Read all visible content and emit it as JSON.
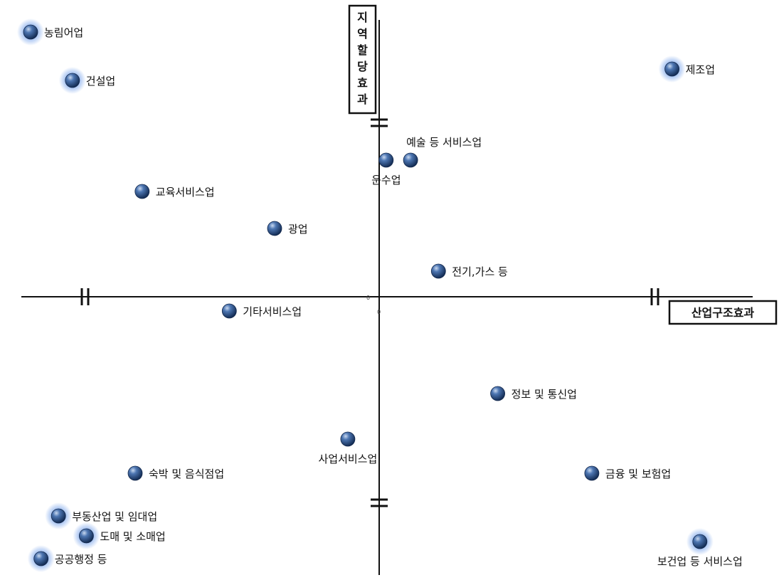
{
  "chart_data": {
    "type": "scatter",
    "title": "",
    "xlabel": "산업구조효과",
    "ylabel": "지역할당효과",
    "origin_label": "0",
    "xlim": [
      -10,
      10
    ],
    "ylim": [
      -10,
      10
    ],
    "grid": false,
    "points": [
      {
        "label": "농림어업",
        "x": -10.0,
        "y": 9.3,
        "glow": true,
        "label_pos": "right"
      },
      {
        "label": "건설업",
        "x": -8.8,
        "y": 7.6,
        "glow": true,
        "label_pos": "right"
      },
      {
        "label": "제조업",
        "x": 8.4,
        "y": 8.0,
        "glow": true,
        "label_pos": "right"
      },
      {
        "label": "예술 등 서비스업",
        "x": 0.9,
        "y": 4.8,
        "glow": false,
        "label_pos": "top"
      },
      {
        "label": "운수업",
        "x": 0.2,
        "y": 4.8,
        "glow": false,
        "label_pos": "bottom"
      },
      {
        "label": "교육서비스업",
        "x": -6.8,
        "y": 3.7,
        "glow": false,
        "label_pos": "right"
      },
      {
        "label": "광업",
        "x": -3.0,
        "y": 2.4,
        "glow": false,
        "label_pos": "right"
      },
      {
        "label": "전기,가스 등",
        "x": 1.7,
        "y": 0.9,
        "glow": false,
        "label_pos": "right"
      },
      {
        "label": "기타서비스업",
        "x": -4.3,
        "y": -0.5,
        "glow": false,
        "label_pos": "right"
      },
      {
        "label": "정보 및 통신업",
        "x": 3.4,
        "y": -3.4,
        "glow": false,
        "label_pos": "right"
      },
      {
        "label": "사업서비스업",
        "x": -0.9,
        "y": -5.0,
        "glow": false,
        "label_pos": "bottom"
      },
      {
        "label": "숙박 및 음식점업",
        "x": -7.0,
        "y": -6.2,
        "glow": false,
        "label_pos": "right"
      },
      {
        "label": "금융 및 보험업",
        "x": 6.1,
        "y": -6.2,
        "glow": false,
        "label_pos": "right"
      },
      {
        "label": "부동산업 및 임대업",
        "x": -9.2,
        "y": -7.7,
        "glow": true,
        "label_pos": "right"
      },
      {
        "label": "도매 및 소매업",
        "x": -8.4,
        "y": -8.4,
        "glow": true,
        "label_pos": "right"
      },
      {
        "label": "공공행정 등",
        "x": -9.7,
        "y": -9.2,
        "glow": true,
        "label_pos": "right"
      },
      {
        "label": "보건업 등 서비스업",
        "x": 9.2,
        "y": -8.6,
        "glow": true,
        "label_pos": "bottom"
      }
    ]
  },
  "colors": {
    "point_dark": "#1c3a66",
    "point_mid": "#3f6aa8",
    "point_light": "#b9cdea",
    "glow": "#7fa8e8",
    "axis": "#111111"
  }
}
